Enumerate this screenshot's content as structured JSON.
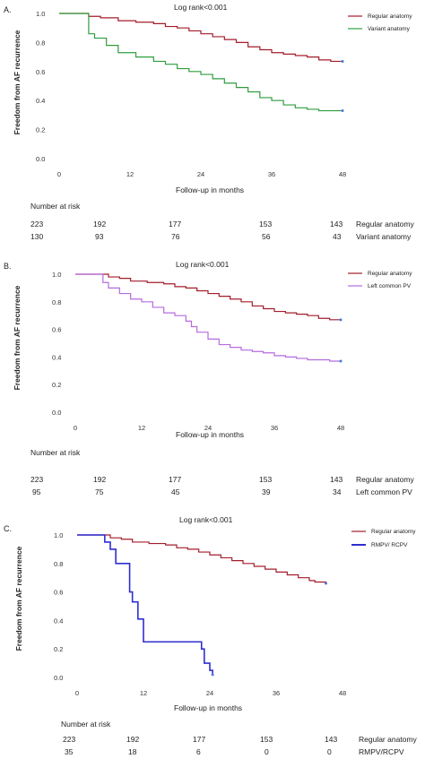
{
  "chart_data": [
    {
      "type": "line",
      "panel_label": "A.",
      "title": "Log rank<0.001",
      "xlabel": "Follow-up in months",
      "ylabel": "Freedom from AF recurrence",
      "xlim": [
        0,
        48
      ],
      "ylim": [
        0,
        1.0
      ],
      "x_ticks": [
        "0",
        "12",
        "24",
        "36",
        "48"
      ],
      "y_ticks": [
        "0.0",
        "0.2",
        "0.4",
        "0.6",
        "0.8",
        "1.0"
      ],
      "legend_position": "top-right",
      "series": [
        {
          "name": "Regular anatomy",
          "color": "#a31d2b",
          "points": [
            [
              0,
              1.0
            ],
            [
              4,
              1.0
            ],
            [
              5,
              0.98
            ],
            [
              7,
              0.97
            ],
            [
              10,
              0.95
            ],
            [
              13,
              0.94
            ],
            [
              16,
              0.93
            ],
            [
              18,
              0.91
            ],
            [
              20,
              0.9
            ],
            [
              22,
              0.88
            ],
            [
              24,
              0.86
            ],
            [
              26,
              0.84
            ],
            [
              28,
              0.82
            ],
            [
              30,
              0.8
            ],
            [
              32,
              0.77
            ],
            [
              34,
              0.75
            ],
            [
              36,
              0.73
            ],
            [
              38,
              0.72
            ],
            [
              40,
              0.71
            ],
            [
              42,
              0.7
            ],
            [
              44,
              0.68
            ],
            [
              46,
              0.67
            ],
            [
              48,
              0.67
            ]
          ]
        },
        {
          "name": "Variant anatomy",
          "color": "#2e9e3e",
          "points": [
            [
              0,
              1.0
            ],
            [
              4,
              1.0
            ],
            [
              5,
              0.86
            ],
            [
              6,
              0.83
            ],
            [
              8,
              0.78
            ],
            [
              10,
              0.73
            ],
            [
              13,
              0.7
            ],
            [
              16,
              0.67
            ],
            [
              18,
              0.65
            ],
            [
              20,
              0.62
            ],
            [
              22,
              0.6
            ],
            [
              24,
              0.58
            ],
            [
              26,
              0.55
            ],
            [
              28,
              0.52
            ],
            [
              30,
              0.49
            ],
            [
              32,
              0.46
            ],
            [
              34,
              0.42
            ],
            [
              36,
              0.4
            ],
            [
              38,
              0.37
            ],
            [
              40,
              0.35
            ],
            [
              42,
              0.34
            ],
            [
              44,
              0.33
            ],
            [
              46,
              0.33
            ],
            [
              48,
              0.33
            ]
          ]
        }
      ],
      "risk_title": "Number at risk",
      "risk_x": [
        "0",
        "12",
        "24",
        "36",
        "48"
      ],
      "risk_rows": [
        {
          "name": "Regular anatomy",
          "values": [
            "223",
            "192",
            "177",
            "153",
            "143"
          ]
        },
        {
          "name": "Variant anatomy",
          "values": [
            "130",
            "93",
            "76",
            "56",
            "43"
          ]
        }
      ]
    },
    {
      "type": "line",
      "panel_label": "B.",
      "title": "Log rank<0.001",
      "xlabel": "Follow-up in months",
      "ylabel": "Freedom from AF recurrence",
      "xlim": [
        0,
        48
      ],
      "ylim": [
        0,
        1.0
      ],
      "x_ticks": [
        "0",
        "12",
        "24",
        "36",
        "48"
      ],
      "y_ticks": [
        "0.0",
        "0.2",
        "0.4",
        "0.6",
        "0.8",
        "1.0"
      ],
      "legend_position": "top-right",
      "series": [
        {
          "name": "Regular anatomy",
          "color": "#a31d2b",
          "points": [
            [
              0,
              1.0
            ],
            [
              4,
              1.0
            ],
            [
              6,
              0.98
            ],
            [
              8,
              0.97
            ],
            [
              10,
              0.95
            ],
            [
              13,
              0.94
            ],
            [
              16,
              0.93
            ],
            [
              18,
              0.91
            ],
            [
              20,
              0.9
            ],
            [
              22,
              0.88
            ],
            [
              24,
              0.86
            ],
            [
              26,
              0.84
            ],
            [
              28,
              0.82
            ],
            [
              30,
              0.8
            ],
            [
              32,
              0.77
            ],
            [
              34,
              0.75
            ],
            [
              36,
              0.73
            ],
            [
              38,
              0.72
            ],
            [
              40,
              0.71
            ],
            [
              42,
              0.7
            ],
            [
              44,
              0.68
            ],
            [
              46,
              0.67
            ],
            [
              48,
              0.67
            ]
          ]
        },
        {
          "name": "Left common PV",
          "color": "#b66be0",
          "points": [
            [
              0,
              1.0
            ],
            [
              4,
              1.0
            ],
            [
              5,
              0.94
            ],
            [
              6,
              0.9
            ],
            [
              8,
              0.86
            ],
            [
              10,
              0.82
            ],
            [
              12,
              0.8
            ],
            [
              14,
              0.76
            ],
            [
              16,
              0.72
            ],
            [
              18,
              0.7
            ],
            [
              20,
              0.66
            ],
            [
              21,
              0.62
            ],
            [
              22,
              0.58
            ],
            [
              24,
              0.53
            ],
            [
              26,
              0.49
            ],
            [
              28,
              0.47
            ],
            [
              30,
              0.45
            ],
            [
              32,
              0.44
            ],
            [
              34,
              0.43
            ],
            [
              36,
              0.41
            ],
            [
              38,
              0.4
            ],
            [
              40,
              0.39
            ],
            [
              42,
              0.38
            ],
            [
              44,
              0.38
            ],
            [
              46,
              0.37
            ],
            [
              48,
              0.37
            ]
          ]
        }
      ],
      "risk_title": "Number at risk",
      "risk_x": [
        "0",
        "12",
        "24",
        "36",
        "48"
      ],
      "risk_rows": [
        {
          "name": "Regular anatomy",
          "values": [
            "223",
            "192",
            "177",
            "153",
            "143"
          ]
        },
        {
          "name": "Left common PV",
          "values": [
            "95",
            "75",
            "45",
            "39",
            "34"
          ]
        }
      ]
    },
    {
      "type": "line",
      "panel_label": "C.",
      "title": "Log rank<0.001",
      "xlabel": "Follow-up in months",
      "ylabel": "Freedom from AF recurrence",
      "xlim": [
        0,
        48
      ],
      "ylim": [
        0,
        1.0
      ],
      "x_ticks": [
        "0",
        "12",
        "24",
        "36",
        "48"
      ],
      "y_ticks": [
        "0.0",
        "0.2",
        "0.4",
        "0.6",
        "0.8",
        "1.0"
      ],
      "legend_position": "top-right",
      "series": [
        {
          "name": "Regular anatomy",
          "color": "#a31d2b",
          "points": [
            [
              0,
              1.0
            ],
            [
              4,
              1.0
            ],
            [
              6,
              0.98
            ],
            [
              8,
              0.97
            ],
            [
              10,
              0.95
            ],
            [
              13,
              0.94
            ],
            [
              16,
              0.93
            ],
            [
              18,
              0.91
            ],
            [
              20,
              0.9
            ],
            [
              22,
              0.88
            ],
            [
              24,
              0.86
            ],
            [
              26,
              0.84
            ],
            [
              28,
              0.82
            ],
            [
              30,
              0.8
            ],
            [
              32,
              0.78
            ],
            [
              34,
              0.76
            ],
            [
              36,
              0.74
            ],
            [
              38,
              0.72
            ],
            [
              40,
              0.7
            ],
            [
              42,
              0.68
            ],
            [
              43,
              0.67
            ],
            [
              45,
              0.66
            ]
          ]
        },
        {
          "name": "RMPV/ RCPV",
          "color": "#2f2fd1",
          "points": [
            [
              0,
              1.0
            ],
            [
              4,
              1.0
            ],
            [
              5,
              0.95
            ],
            [
              6,
              0.9
            ],
            [
              7,
              0.8
            ],
            [
              9,
              0.8
            ],
            [
              9.5,
              0.6
            ],
            [
              10,
              0.53
            ],
            [
              11,
              0.41
            ],
            [
              12,
              0.25
            ],
            [
              22,
              0.25
            ],
            [
              22.5,
              0.2
            ],
            [
              23,
              0.1
            ],
            [
              24,
              0.05
            ],
            [
              24.5,
              0.02
            ]
          ]
        }
      ],
      "risk_title": "Number at risk",
      "risk_x": [
        "0",
        "12",
        "24",
        "36",
        "48"
      ],
      "risk_rows": [
        {
          "name": "Regular anatomy",
          "values": [
            "223",
            "192",
            "177",
            "153",
            "143"
          ]
        },
        {
          "name": "RMPV/RCPV",
          "values": [
            "35",
            "18",
            "6",
            "0",
            "0"
          ]
        }
      ]
    }
  ]
}
